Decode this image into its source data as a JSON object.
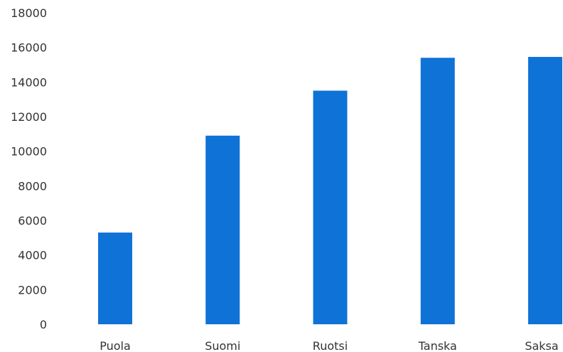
{
  "chart_data": {
    "type": "bar",
    "title": "",
    "xlabel": "",
    "ylabel": "",
    "categories": [
      "Puola",
      "Suomi",
      "Ruotsi",
      "Tanska",
      "Saksa"
    ],
    "values": [
      5300,
      10900,
      13500,
      15400,
      15450
    ],
    "ylim": [
      0,
      18000
    ],
    "yticks": [
      "0",
      "2000",
      "4000",
      "6000",
      "8000",
      "10000",
      "12000",
      "14000",
      "16000",
      "18000"
    ],
    "grid": false,
    "legend": "none",
    "bar_color": "#0f72d6"
  }
}
